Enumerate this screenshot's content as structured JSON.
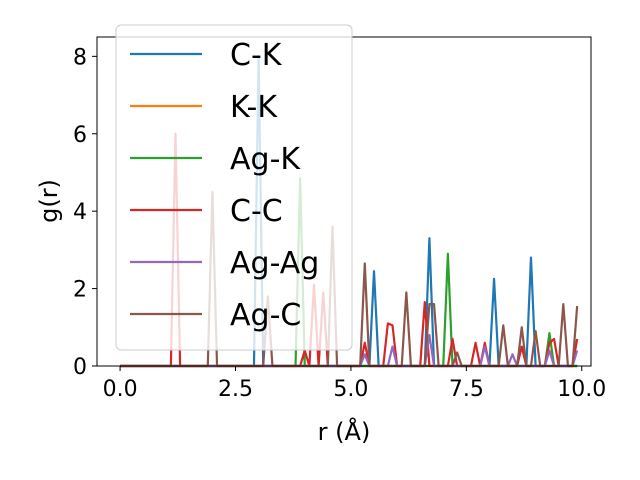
{
  "chart_data": {
    "type": "line",
    "xlabel": "r (Å)",
    "ylabel": "g(r)",
    "xlim": [
      -0.5,
      10.2
    ],
    "ylim": [
      0,
      8.5
    ],
    "xticks": [
      0.0,
      2.5,
      5.0,
      7.5,
      10.0
    ],
    "xtick_labels": [
      "0.0",
      "2.5",
      "5.0",
      "7.5",
      "10.0"
    ],
    "yticks": [
      0,
      2,
      4,
      6,
      8
    ],
    "ytick_labels": [
      "0",
      "2",
      "4",
      "6",
      "8"
    ],
    "grid": false,
    "legend_position": "top-left",
    "series": [
      {
        "name": "C-K",
        "color": "#1f77b4",
        "points": [
          [
            0,
            0
          ],
          [
            2.9,
            0
          ],
          [
            3.0,
            8.0
          ],
          [
            3.1,
            0
          ],
          [
            5.4,
            0
          ],
          [
            5.5,
            2.45
          ],
          [
            5.6,
            0
          ],
          [
            6.6,
            0
          ],
          [
            6.7,
            3.3
          ],
          [
            6.8,
            0
          ],
          [
            8.0,
            0
          ],
          [
            8.1,
            2.25
          ],
          [
            8.2,
            0
          ],
          [
            8.8,
            0
          ],
          [
            8.9,
            2.8
          ],
          [
            9.0,
            0
          ],
          [
            9.9,
            0
          ]
        ]
      },
      {
        "name": "K-K",
        "color": "#ff7f0e",
        "points": [
          [
            0,
            0
          ],
          [
            9.9,
            0
          ]
        ]
      },
      {
        "name": "Ag-K",
        "color": "#2ca02c",
        "points": [
          [
            0,
            0
          ],
          [
            3.8,
            0
          ],
          [
            3.9,
            4.85
          ],
          [
            4.0,
            0
          ],
          [
            7.0,
            0
          ],
          [
            7.1,
            2.9
          ],
          [
            7.2,
            0
          ],
          [
            9.2,
            0
          ],
          [
            9.3,
            0.85
          ],
          [
            9.4,
            0
          ],
          [
            9.9,
            0
          ]
        ]
      },
      {
        "name": "C-C",
        "color": "#d62728",
        "points": [
          [
            0,
            0
          ],
          [
            1.1,
            0
          ],
          [
            1.2,
            6.0
          ],
          [
            1.3,
            0
          ],
          [
            3.9,
            0
          ],
          [
            4.0,
            0.4
          ],
          [
            4.1,
            0
          ],
          [
            4.2,
            2.1
          ],
          [
            4.3,
            0
          ],
          [
            4.4,
            1.9
          ],
          [
            4.5,
            0
          ],
          [
            5.2,
            0
          ],
          [
            5.3,
            0.6
          ],
          [
            5.4,
            0
          ],
          [
            5.7,
            0
          ],
          [
            5.8,
            1.1
          ],
          [
            5.9,
            1.05
          ],
          [
            6.0,
            0
          ],
          [
            6.5,
            0
          ],
          [
            6.6,
            1.65
          ],
          [
            6.7,
            0
          ],
          [
            7.1,
            0
          ],
          [
            7.2,
            0.7
          ],
          [
            7.3,
            0
          ],
          [
            7.6,
            0
          ],
          [
            7.7,
            0.6
          ],
          [
            7.8,
            0
          ],
          [
            7.9,
            0.6
          ],
          [
            8.0,
            0
          ],
          [
            8.6,
            0
          ],
          [
            8.7,
            0.5
          ],
          [
            8.8,
            0
          ],
          [
            9.2,
            0
          ],
          [
            9.3,
            0.6
          ],
          [
            9.4,
            0.7
          ],
          [
            9.5,
            0
          ],
          [
            9.8,
            0
          ],
          [
            9.9,
            0.7
          ]
        ]
      },
      {
        "name": "Ag-Ag",
        "color": "#9467bd",
        "points": [
          [
            0,
            0
          ],
          [
            5.2,
            0
          ],
          [
            5.3,
            0.3
          ],
          [
            5.4,
            0
          ],
          [
            5.8,
            0
          ],
          [
            5.9,
            0.5
          ],
          [
            6.0,
            0
          ],
          [
            6.6,
            0
          ],
          [
            6.7,
            0.8
          ],
          [
            6.8,
            0
          ],
          [
            7.8,
            0
          ],
          [
            7.9,
            0.5
          ],
          [
            8.0,
            0
          ],
          [
            8.4,
            0
          ],
          [
            8.5,
            0.3
          ],
          [
            8.6,
            0
          ],
          [
            9.2,
            0
          ],
          [
            9.3,
            0.4
          ],
          [
            9.4,
            0
          ],
          [
            9.8,
            0
          ],
          [
            9.9,
            0.4
          ]
        ]
      },
      {
        "name": "Ag-C",
        "color": "#8c564b",
        "points": [
          [
            0,
            0
          ],
          [
            1.9,
            0
          ],
          [
            2.0,
            4.5
          ],
          [
            2.1,
            0
          ],
          [
            3.1,
            0
          ],
          [
            3.2,
            1.8
          ],
          [
            3.3,
            0
          ],
          [
            4.5,
            0
          ],
          [
            4.6,
            3.6
          ],
          [
            4.7,
            0
          ],
          [
            5.2,
            0
          ],
          [
            5.3,
            2.65
          ],
          [
            5.4,
            0
          ],
          [
            6.1,
            0
          ],
          [
            6.2,
            1.9
          ],
          [
            6.3,
            0
          ],
          [
            6.6,
            0
          ],
          [
            6.7,
            1.6
          ],
          [
            6.8,
            1.6
          ],
          [
            6.9,
            0
          ],
          [
            7.2,
            0
          ],
          [
            7.3,
            0.35
          ],
          [
            7.4,
            0
          ],
          [
            8.2,
            0
          ],
          [
            8.3,
            1.05
          ],
          [
            8.4,
            0
          ],
          [
            8.6,
            0
          ],
          [
            8.7,
            1.0
          ],
          [
            8.8,
            0
          ],
          [
            8.9,
            0
          ],
          [
            9.0,
            0.9
          ],
          [
            9.1,
            0
          ],
          [
            9.5,
            0
          ],
          [
            9.6,
            1.6
          ],
          [
            9.7,
            0
          ],
          [
            9.8,
            0
          ],
          [
            9.9,
            1.55
          ]
        ]
      }
    ]
  }
}
